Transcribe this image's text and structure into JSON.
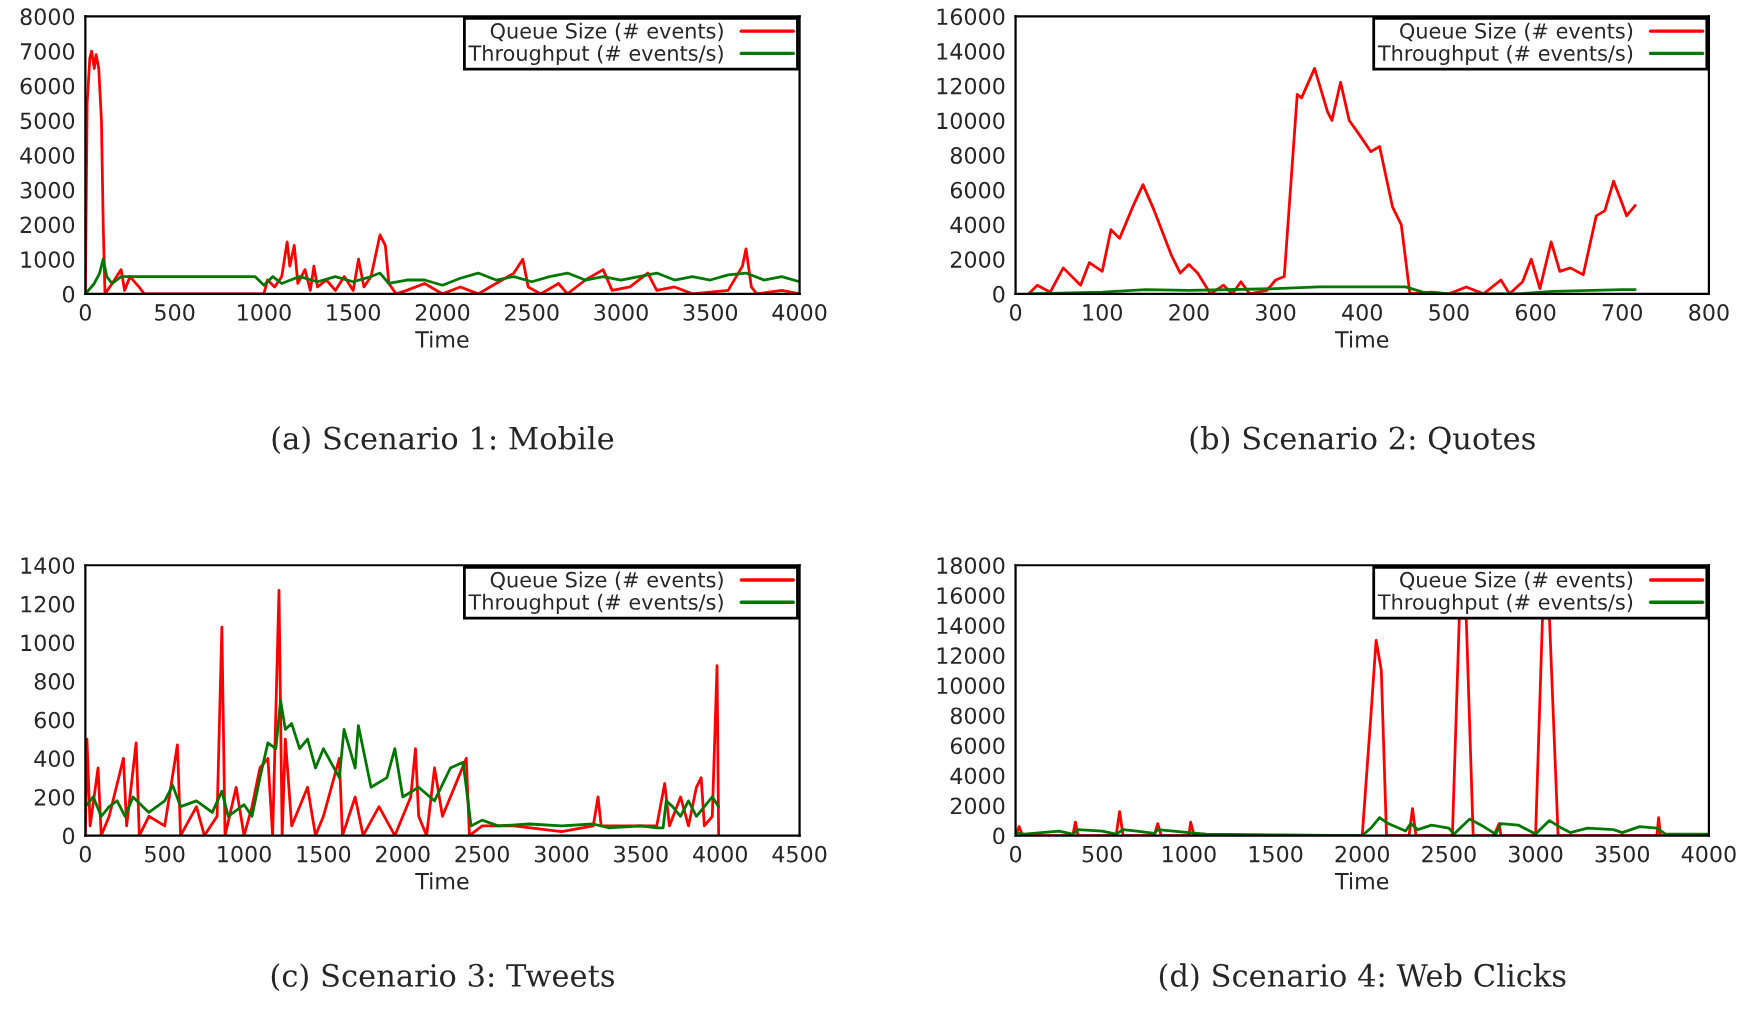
{
  "chart_data": [
    {
      "type": "line",
      "title": "(a) Scenario 1: Mobile",
      "xlabel": "Time",
      "legend": "top right",
      "xlim": [
        0,
        4000
      ],
      "xticks": [
        0,
        500,
        1000,
        1500,
        2000,
        2500,
        3000,
        3500,
        4000
      ],
      "ylim": [
        0,
        8000
      ],
      "yticks": [
        0,
        1000,
        2000,
        3000,
        4000,
        5000,
        6000,
        7000,
        8000
      ],
      "series": [
        {
          "name": "Queue Size (# events)",
          "color": "#ff0000",
          "x": [
            0,
            10,
            25,
            35,
            50,
            60,
            75,
            90,
            100,
            110,
            150,
            200,
            220,
            250,
            300,
            330,
            500,
            1000,
            1020,
            1060,
            1100,
            1130,
            1145,
            1170,
            1190,
            1230,
            1260,
            1280,
            1300,
            1350,
            1400,
            1450,
            1500,
            1530,
            1560,
            1600,
            1650,
            1680,
            1700,
            1740,
            1800,
            1900,
            2000,
            2100,
            2200,
            2300,
            2400,
            2450,
            2480,
            2550,
            2650,
            2700,
            2800,
            2900,
            2950,
            3050,
            3150,
            3200,
            3300,
            3400,
            3600,
            3680,
            3700,
            3730,
            3760,
            3900,
            4000
          ],
          "values": [
            0,
            5500,
            6800,
            7000,
            6500,
            6900,
            6500,
            5000,
            2000,
            0,
            300,
            700,
            100,
            500,
            200,
            0,
            0,
            0,
            400,
            200,
            500,
            1500,
            800,
            1400,
            300,
            700,
            100,
            800,
            200,
            400,
            100,
            500,
            100,
            1000,
            200,
            500,
            1700,
            1400,
            300,
            0,
            100,
            300,
            0,
            200,
            0,
            300,
            600,
            1000,
            200,
            0,
            300,
            0,
            400,
            700,
            100,
            200,
            600,
            100,
            200,
            0,
            100,
            800,
            1300,
            200,
            0,
            100,
            0
          ]
        },
        {
          "name": "Throughput (# events/s)",
          "color": "#007700",
          "x": [
            0,
            50,
            80,
            100,
            120,
            150,
            200,
            300,
            400,
            500,
            700,
            950,
            1000,
            1050,
            1100,
            1200,
            1300,
            1400,
            1500,
            1600,
            1650,
            1700,
            1800,
            1900,
            2000,
            2100,
            2200,
            2300,
            2400,
            2500,
            2600,
            2700,
            2800,
            2900,
            3000,
            3100,
            3200,
            3300,
            3400,
            3500,
            3600,
            3700,
            3800,
            3900,
            4000
          ],
          "values": [
            0,
            300,
            600,
            1000,
            500,
            300,
            500,
            500,
            500,
            500,
            500,
            500,
            250,
            500,
            300,
            500,
            350,
            500,
            350,
            500,
            600,
            300,
            400,
            400,
            250,
            450,
            600,
            400,
            500,
            350,
            500,
            600,
            400,
            500,
            400,
            500,
            600,
            400,
            500,
            400,
            550,
            600,
            400,
            500,
            350
          ]
        }
      ]
    },
    {
      "type": "line",
      "title": "(b) Scenario 2: Quotes",
      "xlabel": "Time",
      "legend": "top right",
      "xlim": [
        0,
        800
      ],
      "xticks": [
        0,
        100,
        200,
        300,
        400,
        500,
        600,
        700,
        800
      ],
      "ylim": [
        0,
        16000
      ],
      "yticks": [
        0,
        2000,
        4000,
        6000,
        8000,
        10000,
        12000,
        14000,
        16000
      ],
      "series": [
        {
          "name": "Queue Size (# events)",
          "color": "#ff0000",
          "x": [
            15,
            25,
            40,
            55,
            75,
            85,
            100,
            110,
            120,
            135,
            147,
            160,
            180,
            190,
            200,
            210,
            225,
            240,
            250,
            260,
            270,
            290,
            300,
            310,
            325,
            330,
            345,
            360,
            365,
            375,
            385,
            395,
            410,
            420,
            435,
            445,
            455,
            480,
            500,
            520,
            540,
            560,
            570,
            585,
            595,
            605,
            618,
            628,
            640,
            655,
            670,
            680,
            690,
            700,
            705,
            715
          ],
          "values": [
            0,
            500,
            100,
            1500,
            500,
            1800,
            1300,
            3700,
            3200,
            5000,
            6300,
            4800,
            2200,
            1200,
            1700,
            1200,
            0,
            500,
            0,
            700,
            0,
            200,
            800,
            1000,
            11500,
            11300,
            13000,
            10500,
            10000,
            12200,
            10000,
            9300,
            8200,
            8500,
            5000,
            4000,
            0,
            100,
            0,
            400,
            0,
            800,
            0,
            700,
            2000,
            300,
            3000,
            1300,
            1500,
            1100,
            4500,
            4800,
            6500,
            5200,
            4500,
            5100
          ]
        },
        {
          "name": "Throughput (# events/s)",
          "color": "#007700",
          "x": [
            15,
            100,
            150,
            200,
            300,
            350,
            450,
            470,
            500,
            580,
            620,
            700,
            715
          ],
          "values": [
            0,
            100,
            250,
            200,
            300,
            400,
            400,
            100,
            0,
            0,
            150,
            250,
            250
          ]
        }
      ]
    },
    {
      "type": "line",
      "title": "(c) Scenario 3: Tweets",
      "xlabel": "Time",
      "legend": "top right",
      "xlim": [
        0,
        4500
      ],
      "xticks": [
        0,
        500,
        1000,
        1500,
        2000,
        2500,
        3000,
        3500,
        4000,
        4500
      ],
      "ylim": [
        0,
        1400
      ],
      "yticks": [
        0,
        200,
        400,
        600,
        800,
        1000,
        1200,
        1400
      ],
      "series": [
        {
          "name": "Queue Size (# events)",
          "color": "#ff0000",
          "x": [
            0,
            10,
            30,
            80,
            100,
            150,
            240,
            260,
            320,
            340,
            400,
            500,
            580,
            600,
            700,
            750,
            830,
            860,
            880,
            950,
            1000,
            1050,
            1100,
            1150,
            1180,
            1220,
            1240,
            1260,
            1300,
            1400,
            1450,
            1500,
            1600,
            1620,
            1700,
            1750,
            1850,
            1950,
            2050,
            2080,
            2100,
            2150,
            2200,
            2250,
            2300,
            2400,
            2420,
            2500,
            2700,
            3000,
            3200,
            3230,
            3250,
            3500,
            3600,
            3650,
            3680,
            3750,
            3800,
            3850,
            3880,
            3900,
            3950,
            3980,
            3990
          ],
          "values": [
            0,
            500,
            50,
            350,
            0,
            100,
            400,
            50,
            480,
            0,
            100,
            50,
            470,
            0,
            150,
            0,
            100,
            1080,
            0,
            250,
            0,
            150,
            350,
            400,
            0,
            1270,
            0,
            500,
            50,
            250,
            0,
            100,
            400,
            0,
            200,
            0,
            150,
            0,
            200,
            450,
            100,
            0,
            350,
            100,
            200,
            400,
            0,
            50,
            50,
            20,
            50,
            200,
            50,
            50,
            50,
            270,
            50,
            200,
            50,
            250,
            300,
            50,
            100,
            880,
            0
          ]
        },
        {
          "name": "Throughput (# events/s)",
          "color": "#007700",
          "x": [
            0,
            50,
            100,
            150,
            200,
            250,
            300,
            400,
            500,
            550,
            600,
            700,
            800,
            860,
            900,
            1000,
            1050,
            1100,
            1150,
            1200,
            1230,
            1260,
            1300,
            1350,
            1400,
            1450,
            1500,
            1600,
            1630,
            1700,
            1720,
            1800,
            1900,
            1950,
            2000,
            2100,
            2200,
            2300,
            2380,
            2400,
            2430,
            2500,
            2600,
            2800,
            3000,
            3200,
            3300,
            3500,
            3600,
            3640,
            3660,
            3700,
            3750,
            3800,
            3850,
            3900,
            3950,
            3990
          ],
          "values": [
            150,
            200,
            100,
            150,
            180,
            100,
            200,
            120,
            180,
            260,
            150,
            180,
            120,
            230,
            100,
            160,
            100,
            300,
            480,
            450,
            700,
            550,
            580,
            450,
            500,
            350,
            450,
            300,
            550,
            350,
            570,
            250,
            300,
            450,
            200,
            250,
            180,
            350,
            380,
            250,
            50,
            80,
            50,
            60,
            50,
            60,
            40,
            50,
            40,
            40,
            180,
            150,
            100,
            180,
            100,
            150,
            200,
            150
          ]
        }
      ]
    },
    {
      "type": "line",
      "title": "(d) Scenario 4: Web Clicks",
      "xlabel": "Time",
      "legend": "top right",
      "xlim": [
        0,
        4000
      ],
      "xticks": [
        0,
        500,
        1000,
        1500,
        2000,
        2500,
        3000,
        3500,
        4000
      ],
      "ylim": [
        0,
        18000
      ],
      "yticks": [
        0,
        2000,
        4000,
        6000,
        8000,
        10000,
        12000,
        14000,
        16000,
        18000
      ],
      "series": [
        {
          "name": "Queue Size (# events)",
          "color": "#ff0000",
          "x": [
            0,
            20,
            40,
            330,
            345,
            360,
            580,
            600,
            620,
            800,
            820,
            840,
            1000,
            1010,
            1030,
            2000,
            2050,
            2080,
            2110,
            2140,
            2270,
            2290,
            2310,
            2520,
            2560,
            2600,
            2640,
            2760,
            2790,
            2800,
            3000,
            3040,
            3080,
            3130,
            3700,
            3710,
            3720,
            4000
          ],
          "values": [
            0,
            600,
            0,
            0,
            900,
            0,
            0,
            1600,
            0,
            0,
            800,
            0,
            0,
            900,
            0,
            0,
            8000,
            13000,
            11000,
            0,
            0,
            1800,
            0,
            0,
            14500,
            14500,
            0,
            0,
            800,
            0,
            0,
            14500,
            14500,
            0,
            0,
            1200,
            0,
            0
          ]
        },
        {
          "name": "Throughput (# events/s)",
          "color": "#007700",
          "x": [
            0,
            50,
            150,
            250,
            330,
            360,
            500,
            580,
            620,
            700,
            800,
            820,
            1000,
            1100,
            1500,
            2000,
            2050,
            2100,
            2150,
            2250,
            2280,
            2320,
            2400,
            2500,
            2530,
            2620,
            2700,
            2770,
            2800,
            2900,
            2950,
            3000,
            3080,
            3150,
            3200,
            3300,
            3450,
            3500,
            3600,
            3700,
            3750,
            4000
          ],
          "values": [
            200,
            100,
            200,
            300,
            100,
            400,
            300,
            100,
            400,
            300,
            150,
            400,
            200,
            100,
            50,
            0,
            500,
            1200,
            800,
            300,
            800,
            400,
            700,
            500,
            100,
            1100,
            600,
            100,
            800,
            700,
            400,
            100,
            1000,
            500,
            200,
            500,
            400,
            200,
            600,
            500,
            100,
            100
          ]
        }
      ]
    }
  ]
}
